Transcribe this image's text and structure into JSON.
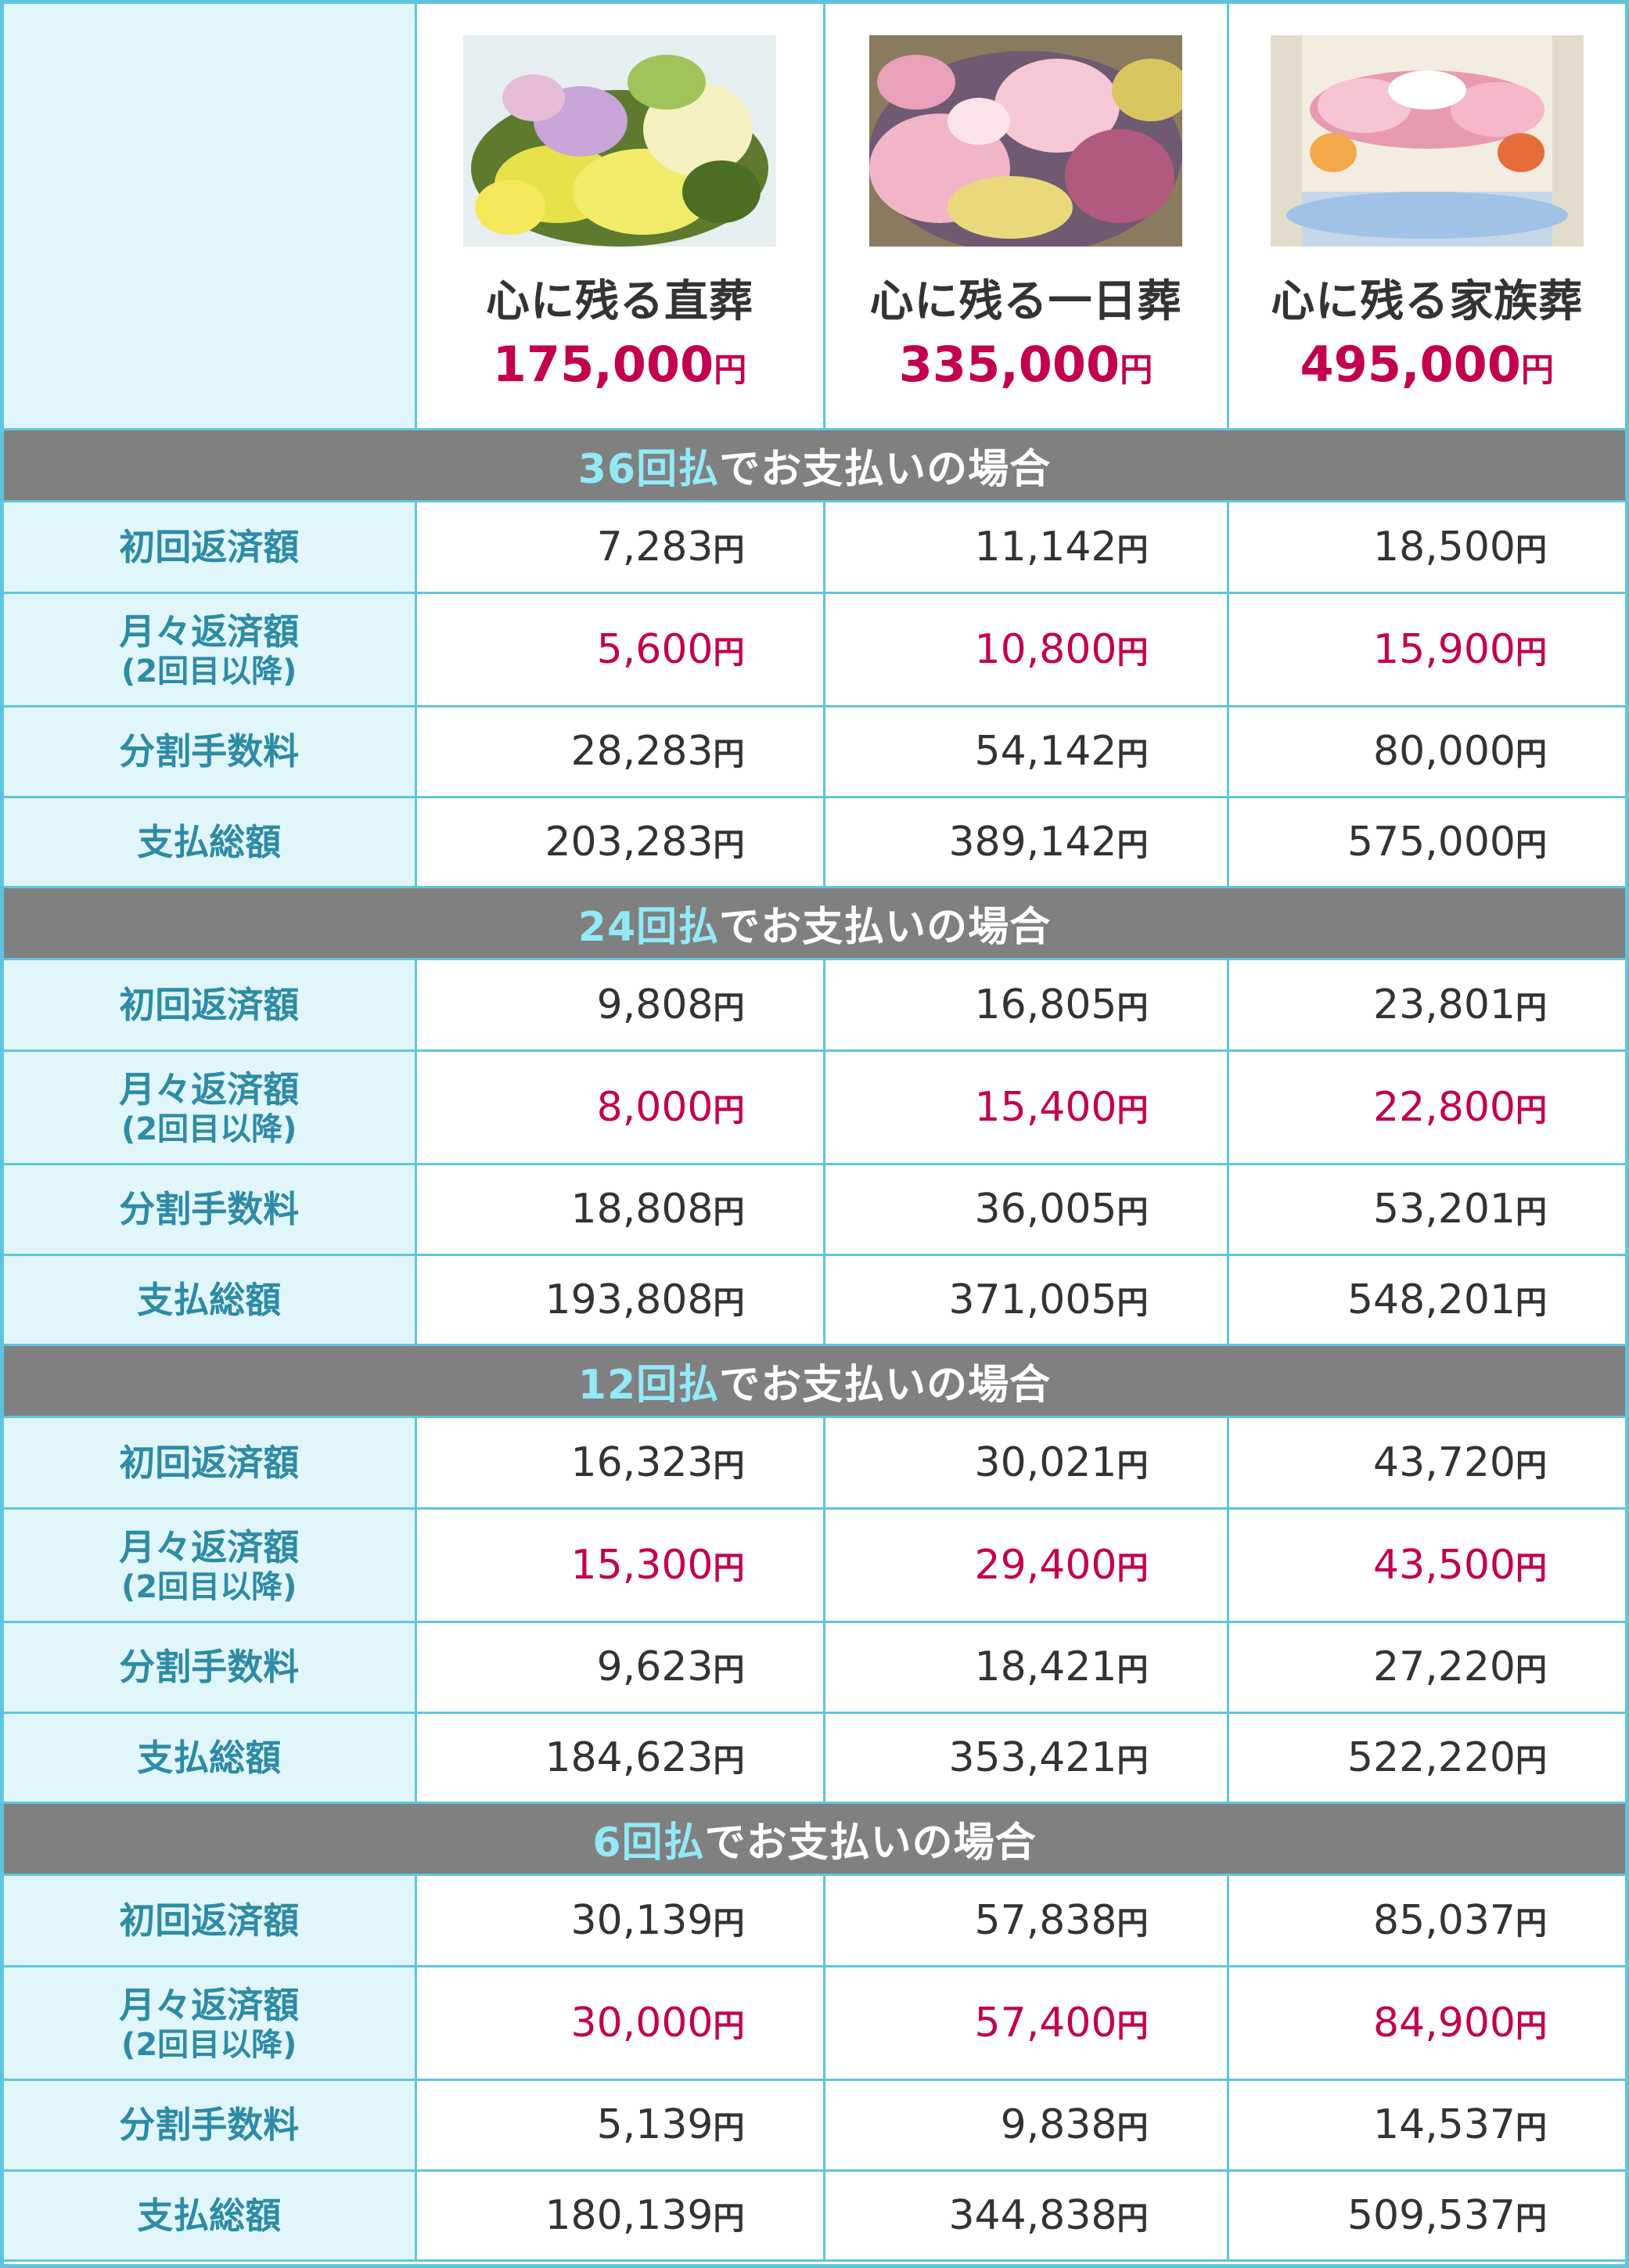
{
  "plans": [
    {
      "name": "心に残る直葬",
      "price": "175,000",
      "photo": "flower-arrangement-yellow",
      "colors": [
        "#5d7a2e",
        "#e8e24a",
        "#c9a5d8",
        "#f4f0c0"
      ]
    },
    {
      "name": "心に残る一日葬",
      "price": "335,000",
      "photo": "flower-arrangement-pink-lilies",
      "colors": [
        "#6f5a72",
        "#f2b5c8",
        "#e9d97a",
        "#b15a7e"
      ]
    },
    {
      "name": "心に残る家族葬",
      "price": "495,000",
      "photo": "funeral-altar-flowers",
      "colors": [
        "#f3ece0",
        "#e89ab0",
        "#f4a94a",
        "#9fc2e6"
      ]
    }
  ],
  "yen": "円",
  "band_suffix": "でお支払いの場合",
  "labels": {
    "first": "初回返済額",
    "monthly": "月々返済額",
    "monthly_sub": "(2回目以降)",
    "fee": "分割手数料",
    "total": "支払総額"
  },
  "sections": [
    {
      "count": "36回払",
      "first": [
        "7,283",
        "11,142",
        "18,500"
      ],
      "monthly": [
        "5,600",
        "10,800",
        "15,900"
      ],
      "fee": [
        "28,283",
        "54,142",
        "80,000"
      ],
      "total": [
        "203,283",
        "389,142",
        "575,000"
      ]
    },
    {
      "count": "24回払",
      "first": [
        "9,808",
        "16,805",
        "23,801"
      ],
      "monthly": [
        "8,000",
        "15,400",
        "22,800"
      ],
      "fee": [
        "18,808",
        "36,005",
        "53,201"
      ],
      "total": [
        "193,808",
        "371,005",
        "548,201"
      ]
    },
    {
      "count": "12回払",
      "first": [
        "16,323",
        "30,021",
        "43,720"
      ],
      "monthly": [
        "15,300",
        "29,400",
        "43,500"
      ],
      "fee": [
        "9,623",
        "18,421",
        "27,220"
      ],
      "total": [
        "184,623",
        "353,421",
        "522,220"
      ]
    },
    {
      "count": "6回払",
      "first": [
        "30,139",
        "57,838",
        "85,037"
      ],
      "monthly": [
        "30,000",
        "57,400",
        "84,900"
      ],
      "fee": [
        "5,139",
        "9,838",
        "14,537"
      ],
      "total": [
        "180,139",
        "344,838",
        "509,537"
      ]
    }
  ],
  "colors": {
    "accent_price": "#c3004e",
    "label_text": "#2e8ba6",
    "label_bg": "#e1f6fa",
    "border": "#5fc5de",
    "band_bg": "#808080",
    "band_count": "#92eaf7"
  }
}
